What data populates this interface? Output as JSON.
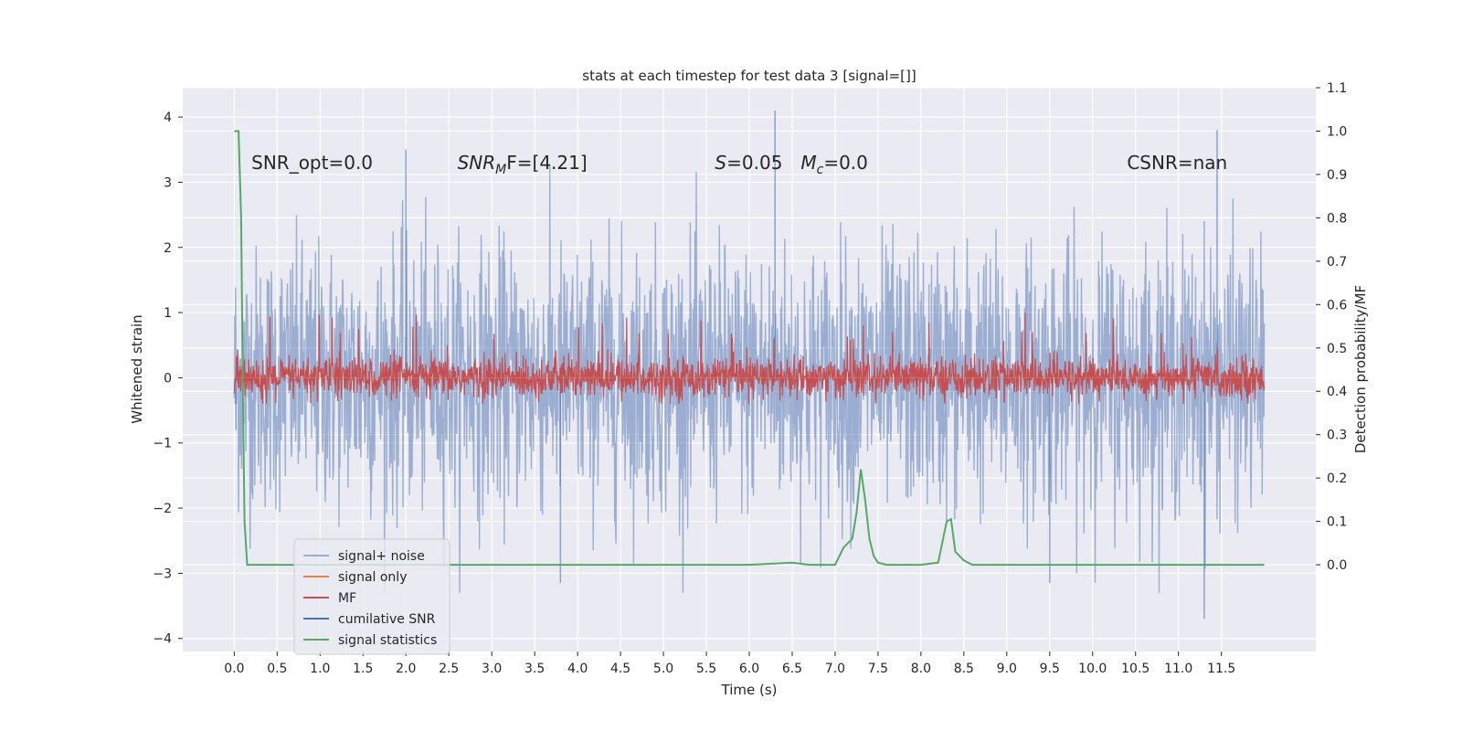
{
  "chart_data": {
    "type": "line",
    "title": "stats at each timestep for test data 3 [signal=[]]",
    "xlabel": "Time (s)",
    "ylabel": "Whitened strain",
    "y2label": "Detection probability/MF",
    "xlim": [
      -0.6,
      12.6
    ],
    "ylim": [
      -4.2,
      4.45
    ],
    "y2lim": [
      -0.2,
      1.1
    ],
    "xticks": [
      0.0,
      0.5,
      1.0,
      1.5,
      2.0,
      2.5,
      3.0,
      3.5,
      4.0,
      4.5,
      5.0,
      5.5,
      6.0,
      6.5,
      7.0,
      7.5,
      8.0,
      8.5,
      9.0,
      9.5,
      10.0,
      10.5,
      11.0,
      11.5
    ],
    "xtick_labels": [
      "0.0",
      "0.5",
      "1.0",
      "1.5",
      "2.0",
      "2.5",
      "3.0",
      "3.5",
      "4.0",
      "4.5",
      "5.0",
      "5.5",
      "6.0",
      "6.5",
      "7.0",
      "7.5",
      "8.0",
      "8.5",
      "9.0",
      "9.5",
      "10.0",
      "10.5",
      "11.0",
      "11.5"
    ],
    "yticks": [
      4,
      3,
      2,
      1,
      0,
      -1,
      -2,
      -3,
      -4
    ],
    "ytick_labels": [
      "4",
      "3",
      "2",
      "1",
      "0",
      "−1",
      "−2",
      "−3",
      "−4"
    ],
    "y2ticks": [
      1.1,
      1.0,
      0.9,
      0.8,
      0.7,
      0.6,
      0.5,
      0.4,
      0.3,
      0.2,
      0.1,
      0.0
    ],
    "y2tick_labels": [
      "1.1",
      "1.0",
      "0.9",
      "0.8",
      "0.7",
      "0.6",
      "0.5",
      "0.4",
      "0.3",
      "0.2",
      "0.1",
      "0.0"
    ],
    "grid": true,
    "legend_position": "lower-left",
    "series": [
      {
        "name": "signal+ noise",
        "axis": "left",
        "color": "#4c72b0",
        "alpha": 0.5,
        "t_range": [
          0.0,
          12.0
        ],
        "amplitude_std": 1.0,
        "extremes": [
          [
            0.02,
            -0.8
          ],
          [
            2.0,
            3.5
          ],
          [
            6.3,
            4.1
          ],
          [
            11.3,
            -3.7
          ],
          [
            11.45,
            3.8
          ],
          [
            3.8,
            -3.15
          ],
          [
            9.5,
            -3.15
          ]
        ]
      },
      {
        "name": "signal only",
        "axis": "left",
        "color": "#dd8452",
        "values_constant": 0.0
      },
      {
        "name": "MF",
        "axis": "left",
        "color": "#c44e52",
        "t_range": [
          0.0,
          12.0
        ],
        "band": [
          -0.4,
          0.4
        ],
        "peak": 1.0
      },
      {
        "name": "cumilative SNR",
        "axis": "left",
        "color": "#4c72b0"
      },
      {
        "name": "signal statistics",
        "axis": "right",
        "color": "#55a868",
        "x": [
          0.0,
          0.05,
          0.08,
          0.1,
          0.12,
          0.15,
          0.2,
          0.25,
          0.3,
          0.5,
          1.0,
          2.0,
          3.0,
          4.0,
          4.5,
          4.8,
          5.0,
          6.0,
          6.5,
          6.7,
          7.0,
          7.1,
          7.2,
          7.25,
          7.3,
          7.35,
          7.4,
          7.45,
          7.5,
          7.6,
          7.8,
          8.0,
          8.2,
          8.3,
          8.35,
          8.4,
          8.5,
          8.6,
          9.0,
          10.0,
          11.0,
          11.5,
          12.0
        ],
        "y": [
          1.0,
          1.0,
          0.8,
          0.4,
          0.1,
          0.0,
          0.0,
          0.0,
          0.0,
          0.0,
          0.0,
          0.0,
          0.0,
          0.0,
          0.0,
          0.0,
          0.0,
          0.0,
          0.005,
          0.0,
          0.0,
          0.04,
          0.06,
          0.12,
          0.22,
          0.15,
          0.06,
          0.02,
          0.005,
          0.0,
          0.0,
          0.0,
          0.005,
          0.1,
          0.105,
          0.03,
          0.01,
          0.0,
          0.0,
          0.0,
          0.0,
          0.0,
          0.0
        ]
      }
    ],
    "annotations": [
      {
        "text": "SNR_opt=0.0",
        "x": 0.2,
        "y": 3.3
      },
      {
        "text": "SNRMF=[4.21]",
        "display_main": "SNR",
        "display_sub": "M",
        "display_after": "F=[4.21]",
        "x": 2.6,
        "y": 3.3
      },
      {
        "text": "S=0.05",
        "display_main": "S",
        "display_after": "=0.05",
        "x": 5.6,
        "y": 3.3
      },
      {
        "text": "Mc=0.0",
        "display_main": "M",
        "display_sub": "c",
        "display_after": "=0.0",
        "x": 6.6,
        "y": 3.3
      },
      {
        "text": "CSNR=nan",
        "x": 10.4,
        "y": 3.3
      }
    ]
  }
}
